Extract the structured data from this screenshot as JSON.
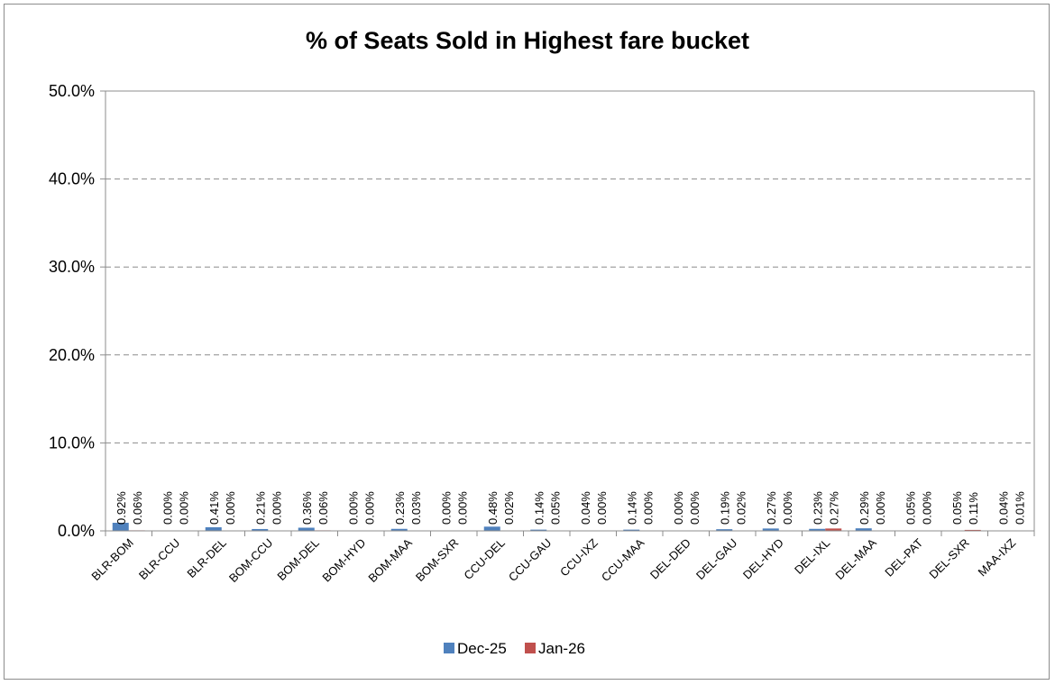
{
  "chart_data": {
    "type": "bar",
    "title": "% of Seats Sold in Highest fare bucket",
    "xlabel": "",
    "ylabel": "",
    "ylim": [
      0,
      50
    ],
    "y_ticks": [
      "0.0%",
      "10.0%",
      "20.0%",
      "30.0%",
      "40.0%",
      "50.0%"
    ],
    "grid": true,
    "legend_position": "bottom",
    "categories": [
      "BLR-BOM",
      "BLR-CCU",
      "BLR-DEL",
      "BOM-CCU",
      "BOM-DEL",
      "BOM-HYD",
      "BOM-MAA",
      "BOM-SXR",
      "CCU-DEL",
      "CCU-GAU",
      "CCU-IXZ",
      "CCU-MAA",
      "DEL-DED",
      "DEL-GAU",
      "DEL-HYD",
      "DEL-IXL",
      "DEL-MAA",
      "DEL-PAT",
      "DEL-SXR",
      "MAA-IXZ"
    ],
    "series": [
      {
        "name": "Dec-25",
        "color": "#4f81bd",
        "values": [
          0.92,
          0.0,
          0.41,
          0.21,
          0.36,
          0.0,
          0.23,
          0.0,
          0.48,
          0.14,
          0.04,
          0.14,
          0.0,
          0.19,
          0.27,
          0.23,
          0.29,
          0.05,
          0.05,
          0.04
        ],
        "labels": [
          "0.92%",
          "0.00%",
          "0.41%",
          "0.21%",
          "0.36%",
          "0.00%",
          "0.23%",
          "0.00%",
          "0.48%",
          "0.14%",
          "0.04%",
          "0.14%",
          "0.00%",
          "0.19%",
          "0.27%",
          "0.23%",
          "0.29%",
          "0.05%",
          "0.05%",
          "0.04%"
        ]
      },
      {
        "name": "Jan-26",
        "color": "#c0504d",
        "values": [
          0.06,
          0.0,
          0.0,
          0.0,
          0.06,
          0.0,
          0.03,
          0.0,
          0.02,
          0.05,
          0.0,
          0.0,
          0.0,
          0.02,
          0.0,
          0.27,
          0.0,
          0.0,
          0.11,
          0.01
        ],
        "labels": [
          "0.06%",
          "0.00%",
          "0.00%",
          "0.00%",
          "0.06%",
          "0.00%",
          "0.03%",
          "0.00%",
          "0.02%",
          "0.05%",
          "0.00%",
          "0.00%",
          "0.00%",
          "0.02%",
          "0.00%",
          "0.27%",
          "0.00%",
          "0.00%",
          "0.11%",
          "0.01%"
        ]
      }
    ]
  }
}
